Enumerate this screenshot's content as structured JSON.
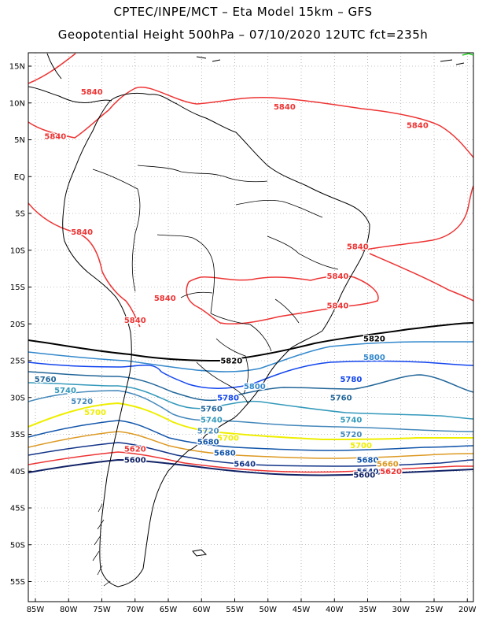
{
  "header": {
    "title_line1": "CPTEC/INPE/MCT  –   Eta Model 15km  –  GFS",
    "title_line2": "Geopotential Height 500hPa  –  07/10/2020 12UTC fct=235h"
  },
  "axes": {
    "lat_ticks": [
      "15N",
      "10N",
      "5N",
      "EQ",
      "5S",
      "10S",
      "15S",
      "20S",
      "25S",
      "30S",
      "35S",
      "40S",
      "45S",
      "50S",
      "55S"
    ],
    "lon_ticks": [
      "85W",
      "80W",
      "75W",
      "70W",
      "65W",
      "60W",
      "55W",
      "50W",
      "45W",
      "40W",
      "35W",
      "30W",
      "25W",
      "20W"
    ]
  },
  "colors": {
    "5840": "#ee3333",
    "5820": "#000000",
    "5800": "#3388cc",
    "5780": "#1144ee",
    "5760": "#226699",
    "5740": "#3399bb",
    "5720": "#4488bb",
    "5700": "#eeee00",
    "5680": "#1155aa",
    "5660": "#dd9922",
    "5640": "#113388",
    "5620": "#ee3333",
    "5600": "#112266"
  },
  "contour_labels": [
    {
      "text": "5840",
      "color_key": "5840",
      "lon": -76.5,
      "lat": 11.5
    },
    {
      "text": "5840",
      "color_key": "5840",
      "lon": -47.5,
      "lat": 9.5
    },
    {
      "text": "5840",
      "color_key": "5840",
      "lon": -27.5,
      "lat": 7.0
    },
    {
      "text": "5840",
      "color_key": "5840",
      "lon": -82.0,
      "lat": 5.5
    },
    {
      "text": "5840",
      "color_key": "5840",
      "lon": -78.0,
      "lat": -7.5
    },
    {
      "text": "5840",
      "color_key": "5840",
      "lon": -36.5,
      "lat": -9.5
    },
    {
      "text": "5840",
      "color_key": "5840",
      "lon": -39.5,
      "lat": -13.5
    },
    {
      "text": "5840",
      "color_key": "5840",
      "lon": -65.5,
      "lat": -16.5
    },
    {
      "text": "5840",
      "color_key": "5840",
      "lon": -39.5,
      "lat": -17.5
    },
    {
      "text": "5840",
      "color_key": "5840",
      "lon": -70.0,
      "lat": -19.5
    },
    {
      "text": "5820",
      "color_key": "5820",
      "lon": -34.0,
      "lat": -22.0
    },
    {
      "text": "5820",
      "color_key": "5820",
      "lon": -55.5,
      "lat": -25.0
    },
    {
      "text": "5800",
      "color_key": "5800",
      "lon": -34.0,
      "lat": -24.5
    },
    {
      "text": "5800",
      "color_key": "5800",
      "lon": -52.0,
      "lat": -28.5
    },
    {
      "text": "5780",
      "color_key": "5780",
      "lon": -37.5,
      "lat": -27.5
    },
    {
      "text": "5780",
      "color_key": "5780",
      "lon": -56.0,
      "lat": -30.0
    },
    {
      "text": "5760",
      "color_key": "5760",
      "lon": -83.5,
      "lat": -27.5
    },
    {
      "text": "5760",
      "color_key": "5760",
      "lon": -39.0,
      "lat": -30.0
    },
    {
      "text": "5760",
      "color_key": "5760",
      "lon": -58.5,
      "lat": -31.5
    },
    {
      "text": "5740",
      "color_key": "5740",
      "lon": -80.5,
      "lat": -29.0
    },
    {
      "text": "5740",
      "color_key": "5740",
      "lon": -37.5,
      "lat": -33.0
    },
    {
      "text": "5740",
      "color_key": "5740",
      "lon": -58.5,
      "lat": -33.0
    },
    {
      "text": "5720",
      "color_key": "5720",
      "lon": -78.0,
      "lat": -30.5
    },
    {
      "text": "5720",
      "color_key": "5720",
      "lon": -37.5,
      "lat": -35.0
    },
    {
      "text": "5720",
      "color_key": "5720",
      "lon": -59.0,
      "lat": -34.5
    },
    {
      "text": "5700",
      "color_key": "5700",
      "lon": -76.0,
      "lat": -32.0
    },
    {
      "text": "5700",
      "color_key": "5700",
      "lon": -36.0,
      "lat": -36.5
    },
    {
      "text": "5700",
      "color_key": "5700",
      "lon": -56.0,
      "lat": -35.5
    },
    {
      "text": "5680",
      "color_key": "5680",
      "lon": -59.0,
      "lat": -36.0
    },
    {
      "text": "5680",
      "color_key": "5680",
      "lon": -35.0,
      "lat": -38.5
    },
    {
      "text": "5680",
      "color_key": "5680",
      "lon": -56.5,
      "lat": -37.5
    },
    {
      "text": "5660",
      "color_key": "5660",
      "lon": -32.0,
      "lat": -39.0
    },
    {
      "text": "5640",
      "color_key": "5640",
      "lon": -35.0,
      "lat": -40.0
    },
    {
      "text": "5640",
      "color_key": "5640",
      "lon": -53.5,
      "lat": -39.0
    },
    {
      "text": "5620",
      "color_key": "5620",
      "lon": -70.0,
      "lat": -37.0
    },
    {
      "text": "5620",
      "color_key": "5620",
      "lon": -31.5,
      "lat": -40.0
    },
    {
      "text": "5600",
      "color_key": "5600",
      "lon": -70.0,
      "lat": -38.5
    },
    {
      "text": "5600",
      "color_key": "5600",
      "lon": -35.5,
      "lat": -40.5
    }
  ]
}
